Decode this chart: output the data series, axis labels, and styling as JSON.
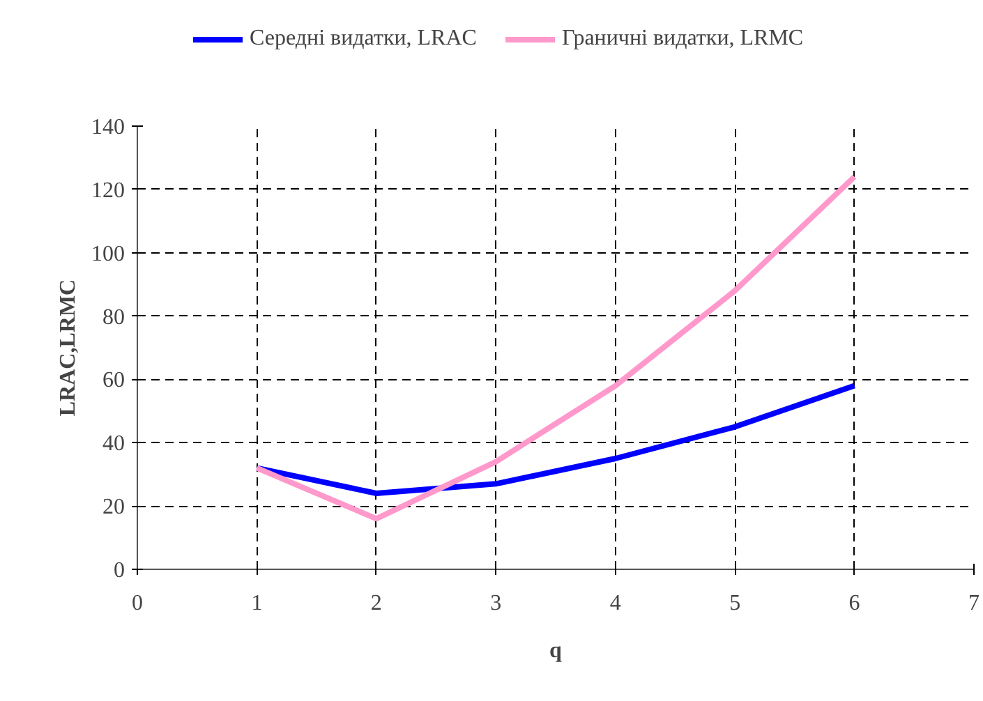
{
  "chart_data": {
    "type": "line",
    "xlabel": "q",
    "ylabel": "LRAC,LRMC",
    "x": [
      1,
      2,
      3,
      4,
      5,
      6
    ],
    "series": [
      {
        "name": "Середні видатки, LRAC",
        "color": "#0000ff",
        "values": [
          32,
          24,
          27,
          35,
          45,
          58
        ]
      },
      {
        "name": "Граничні видатки, LRMC",
        "color": "#ff99cc",
        "values": [
          32,
          16,
          34,
          58,
          88,
          124
        ]
      }
    ],
    "xlim": [
      0,
      7
    ],
    "xticks": [
      0,
      1,
      2,
      3,
      4,
      5,
      6,
      7
    ],
    "ylim": [
      0,
      140
    ],
    "yticks": [
      0,
      20,
      40,
      60,
      80,
      100,
      120,
      140
    ],
    "grid": true,
    "legend": "top",
    "marker": "none",
    "line_style": "solid"
  }
}
